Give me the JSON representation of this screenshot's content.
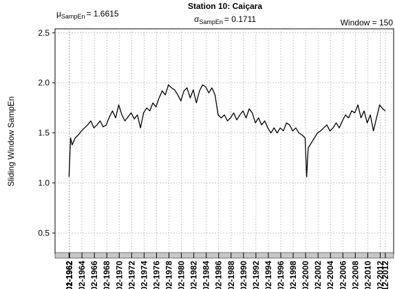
{
  "chart_data": {
    "type": "line",
    "title": "Station 10: Caiçara",
    "mean_annotation": {
      "symbol": "μ",
      "subscript": "SampEn",
      "text": "= 1.6615"
    },
    "sd_annotation": {
      "symbol": "σ",
      "subscript": "SampEn",
      "text": "= 0.1711"
    },
    "window_annotation": "Window = 150",
    "y_label": "Sliding Window SampEn",
    "color": "#000000",
    "grid": true,
    "xlim": [
      "10-1959",
      "04-2014"
    ],
    "xticks": [
      "01-1962",
      "02-1962",
      "02-1964",
      "02-1966",
      "02-1968",
      "02-1970",
      "02-1972",
      "02-1974",
      "02-1976",
      "02-1978",
      "02-1980",
      "02-1982",
      "02-1984",
      "02-1986",
      "02-1988",
      "02-1990",
      "02-1992",
      "02-1994",
      "02-1996",
      "02-1998",
      "02-2000",
      "02-2002",
      "02-2004",
      "02-2006",
      "02-2008",
      "02-2010",
      "02-2012",
      "12-2012"
    ],
    "ylim": [
      0.29,
      2.54
    ],
    "yticks": [
      0.5,
      {
        "value": 1,
        "label": "1.0"
      },
      1.5,
      {
        "value": 2,
        "label": "2.0"
      },
      2.5
    ],
    "x": [
      "01-1962",
      "04-1962",
      "07-1962",
      "01-1963",
      "07-1963",
      "01-1964",
      "07-1964",
      "01-1965",
      "07-1965",
      "01-1966",
      "07-1966",
      "01-1967",
      "07-1967",
      "01-1968",
      "07-1968",
      "01-1969",
      "07-1969",
      "01-1970",
      "07-1970",
      "01-1971",
      "07-1971",
      "01-1972",
      "07-1972",
      "01-1973",
      "07-1973",
      "01-1974",
      "07-1974",
      "01-1975",
      "07-1975",
      "01-1976",
      "07-1976",
      "01-1977",
      "07-1977",
      "01-1978",
      "07-1978",
      "01-1979",
      "07-1979",
      "01-1980",
      "07-1980",
      "01-1981",
      "07-1981",
      "01-1982",
      "07-1982",
      "01-1983",
      "07-1983",
      "01-1984",
      "07-1984",
      "01-1985",
      "07-1985",
      "01-1986",
      "07-1986",
      "01-1987",
      "07-1987",
      "01-1988",
      "07-1988",
      "01-1989",
      "07-1989",
      "01-1990",
      "07-1990",
      "01-1991",
      "07-1991",
      "01-1992",
      "07-1992",
      "01-1993",
      "07-1993",
      "01-1994",
      "07-1994",
      "01-1995",
      "07-1995",
      "01-1996",
      "07-1996",
      "01-1997",
      "07-1997",
      "01-1998",
      "07-1998",
      "01-1999",
      "07-1999",
      "01-2000",
      "04-2000",
      "07-2000",
      "01-2001",
      "07-2001",
      "01-2002",
      "07-2002",
      "01-2003",
      "07-2003",
      "01-2004",
      "07-2004",
      "01-2005",
      "07-2005",
      "01-2006",
      "07-2006",
      "01-2007",
      "07-2007",
      "01-2008",
      "07-2008",
      "01-2009",
      "07-2009",
      "01-2010",
      "07-2010",
      "01-2011",
      "07-2011",
      "01-2012",
      "07-2012",
      "12-2012"
    ],
    "values": [
      1.06,
      1.45,
      1.38,
      1.45,
      1.48,
      1.52,
      1.55,
      1.58,
      1.62,
      1.55,
      1.58,
      1.62,
      1.56,
      1.58,
      1.66,
      1.72,
      1.65,
      1.78,
      1.68,
      1.62,
      1.66,
      1.7,
      1.64,
      1.68,
      1.55,
      1.7,
      1.75,
      1.72,
      1.8,
      1.76,
      1.85,
      1.92,
      1.88,
      1.98,
      1.95,
      1.93,
      1.88,
      1.82,
      1.92,
      1.95,
      1.85,
      1.93,
      1.8,
      1.92,
      1.98,
      1.96,
      1.9,
      1.95,
      1.88,
      1.68,
      1.65,
      1.68,
      1.62,
      1.65,
      1.7,
      1.63,
      1.68,
      1.72,
      1.65,
      1.74,
      1.7,
      1.6,
      1.65,
      1.58,
      1.62,
      1.55,
      1.5,
      1.55,
      1.5,
      1.55,
      1.52,
      1.6,
      1.58,
      1.52,
      1.55,
      1.5,
      1.48,
      1.45,
      1.06,
      1.35,
      1.4,
      1.45,
      1.5,
      1.52,
      1.55,
      1.58,
      1.52,
      1.55,
      1.6,
      1.55,
      1.62,
      1.68,
      1.65,
      1.72,
      1.7,
      1.78,
      1.65,
      1.72,
      1.6,
      1.68,
      1.52,
      1.65,
      1.78,
      1.74,
      1.72
    ]
  }
}
